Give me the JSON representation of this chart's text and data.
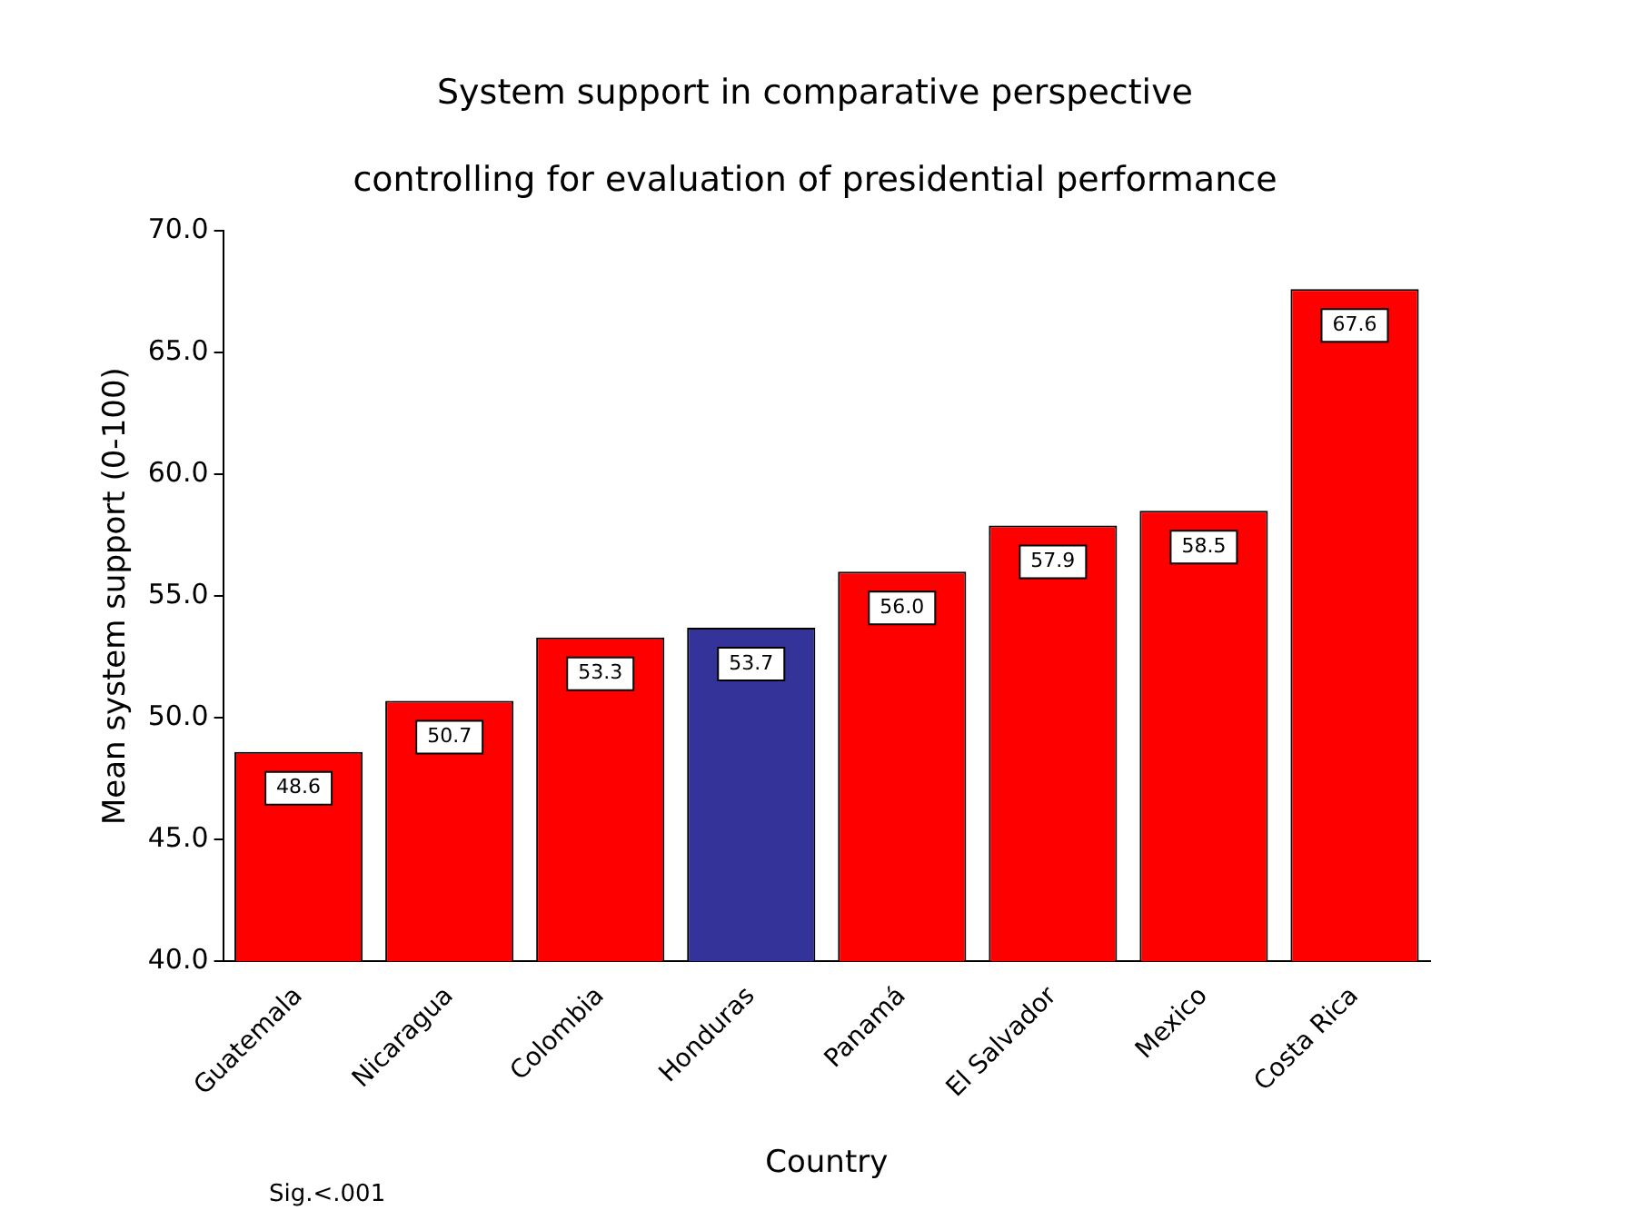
{
  "chart_data": {
    "type": "bar",
    "title": "System support in comparative perspective",
    "subtitle": "controlling for evaluation of presidential performance",
    "xlabel": "Country",
    "ylabel": "Mean system support (0-100)",
    "categories": [
      "Guatemala",
      "Nicaragua",
      "Colombia",
      "Honduras",
      "Panamá",
      "El Salvador",
      "Mexico",
      "Costa Rica"
    ],
    "values": [
      48.6,
      50.7,
      53.3,
      53.7,
      56.0,
      57.9,
      58.5,
      67.6
    ],
    "colors": [
      "#ff0000",
      "#ff0000",
      "#ff0000",
      "#333399",
      "#ff0000",
      "#ff0000",
      "#ff0000",
      "#ff0000"
    ],
    "ylim": [
      40,
      70
    ],
    "yticks": [
      {
        "value": 40,
        "label": "40.0"
      },
      {
        "value": 45,
        "label": "45.0"
      },
      {
        "value": 50,
        "label": "50.0"
      },
      {
        "value": 55,
        "label": "55.0"
      },
      {
        "value": 60,
        "label": "60.0"
      },
      {
        "value": 65,
        "label": "65.0"
      },
      {
        "value": 70,
        "label": "70.0"
      }
    ],
    "value_labels": [
      "48.6",
      "50.7",
      "53.3",
      "53.7",
      "56.0",
      "57.9",
      "58.5",
      "67.6"
    ],
    "grid": false,
    "legend": false,
    "annotations": [
      "Sig.<.001"
    ]
  }
}
